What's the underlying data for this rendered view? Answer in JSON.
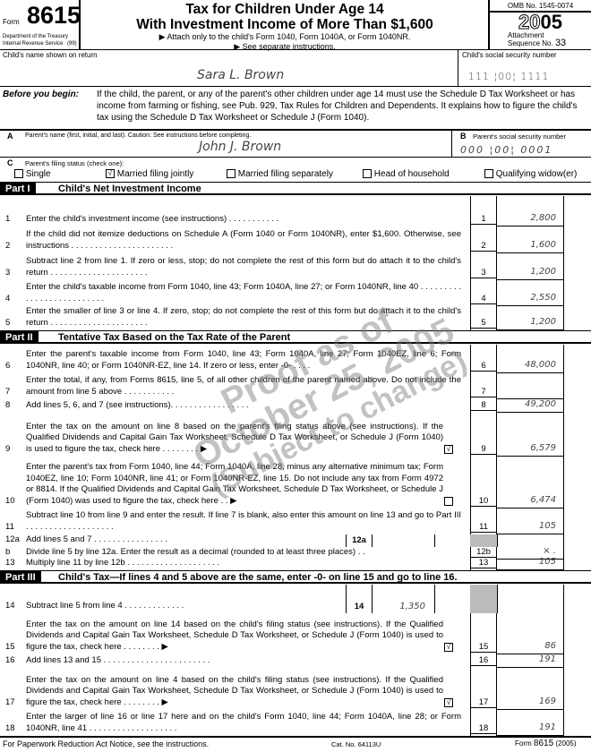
{
  "header": {
    "form_label": "Form",
    "form_number": "8615",
    "dept": "Department of the Treasury",
    "irs": "Internal Revenue Service",
    "irs_code": "(99)",
    "title1": "Tax for Children Under Age 14",
    "title2": "With Investment Income of More Than $1,600",
    "attach": "▶ Attach only to the child's Form 1040, Form 1040A, or Form 1040NR.",
    "see": "▶ See separate instructions.",
    "omb": "OMB No. 1545-0074",
    "year_outline": "20",
    "year_bold": "05",
    "attachment": "Attachment",
    "sequence": "Sequence No.",
    "sequence_no": "33"
  },
  "child": {
    "name_label": "Child's name shown on return",
    "name": "Sara L. Brown",
    "ssn_label": "Child's social security number",
    "ssn": "111 ¦00¦ 1111"
  },
  "before": {
    "label": "Before you begin:",
    "text": "If the child, the parent, or any of the parent's other children under age 14 must use the Schedule D Tax Worksheet or has income from farming or fishing, see Pub. 929, Tax Rules for Children and Dependents. It explains how to figure the child's tax using the Schedule D Tax Worksheet or Schedule J (Form 1040)."
  },
  "parent": {
    "a": "A",
    "name_label": "Parent's name (first, initial, and last). Caution: See instructions before completing.",
    "name": "John J. Brown",
    "b": "B",
    "ssn_label": "Parent's social security number",
    "ssn": "000 ¦00¦ 0001"
  },
  "filing": {
    "c": "C",
    "label": "Parent's filing status (check one):",
    "options": [
      {
        "label": "Single",
        "checked": false
      },
      {
        "label": "Married filing jointly",
        "checked": true
      },
      {
        "label": "Married filing separately",
        "checked": false
      },
      {
        "label": "Head of household",
        "checked": false
      },
      {
        "label": "Qualifying widow(er)",
        "checked": false
      }
    ]
  },
  "parts": [
    {
      "tag": "Part I",
      "title": "Child's Net Investment Income"
    },
    {
      "tag": "Part II",
      "title": "Tentative Tax Based on the Tax Rate of the Parent"
    },
    {
      "tag": "Part III",
      "title": "Child's Tax—If lines 4 and 5 above are the same, enter -0- on line 15 and go to line 16."
    }
  ],
  "lines": [
    {
      "num": "1",
      "box": "1",
      "text": "Enter the child's investment income (see instructions) . . . . . . . . . . .",
      "value": "2,800"
    },
    {
      "num": "2",
      "box": "2",
      "text": "If the child did not itemize deductions on Schedule A (Form 1040 or Form 1040NR), enter $1,600. Otherwise, see instructions . . . . . . . . . . . . . . . . . . . . . .",
      "value": "1,600"
    },
    {
      "num": "3",
      "box": "3",
      "text": "Subtract line 2 from line 1. If zero or less, stop; do not complete the rest of this form but do attach it to the child's return . . . . . . . . . . . . . . . . . . . . .",
      "value": "1,200"
    },
    {
      "num": "4",
      "box": "4",
      "text": "Enter the child's taxable income from Form 1040, line 43; Form 1040A, line 27; or Form 1040NR, line 40 . . . . . . . . . . . . . . . . . . . . . . . . . .",
      "value": "2,550"
    },
    {
      "num": "5",
      "box": "5",
      "text": "Enter the smaller of line 3 or line 4. If zero, stop; do not complete the rest of this form but do attach it to the child's return . . . . . . . . . . . . . . . . . . . . .",
      "value": "1,200"
    },
    {
      "num": "6",
      "box": "6",
      "text": "Enter the parent's taxable income from Form 1040, line 43; Form 1040A, line 27; Form 1040EZ, line 6; Form 1040NR, line 40; or Form 1040NR-EZ, line 14. If zero or less, enter -0- . . . .",
      "value": "48,000"
    },
    {
      "num": "7",
      "box": "7",
      "text": "Enter the total, if any, from Forms 8615, line 5, of all other children of the parent named above. Do not include the amount from line 5 above . . . . . . . . . . .",
      "value": ""
    },
    {
      "num": "8",
      "box": "8",
      "text": "Add lines 5, 6, and 7 (see instructions). . . . . . . . . . . . . . . . .",
      "value": "49,200"
    },
    {
      "num": "9",
      "box": "9",
      "text": "Enter the tax on the amount on line 8 based on the parent's filing status above (see instructions). If the Qualified Dividends and Capital Gain Tax Worksheet, Schedule D Tax Worksheet, or Schedule J (Form 1040) is used to figure the tax, check here . . . . . . . . ▶",
      "value": "6,579",
      "check": true
    },
    {
      "num": "10",
      "box": "10",
      "text": "Enter the parent's tax from Form 1040, line 44; Form 1040A, line 28, minus any alternative minimum tax; Form 1040EZ, line 10; Form 1040NR, line 41; or Form 1040NR-EZ, line 15. Do not include any tax from Form 4972 or 8814. If the Qualified Dividends and Capital Gain Tax Worksheet, Schedule D Tax Worksheet, or Schedule J (Form 1040) was used to figure the tax, check here . . ▶",
      "value": "6,474",
      "check": false
    },
    {
      "num": "11",
      "box": "11",
      "text": "Subtract line 10 from line 9 and enter the result. If line 7 is blank, also enter this amount on line 13 and go to Part III . . . . . . . . . . . . . . . . . . .",
      "value": "105"
    },
    {
      "num": "12a",
      "box": "",
      "text": "Add lines 5 and 7 . . . . . . . . . . . . . . . .",
      "value": "",
      "inner": "12a",
      "innerValue": ""
    },
    {
      "num": "b",
      "box": "12b",
      "text": "Divide line 5 by line 12a. Enter the result as a decimal (rounded to at least three places) . .",
      "value": "×  ."
    },
    {
      "num": "13",
      "box": "13",
      "text": "Multiply line 11 by line 12b . . . . . . . . . . . . . . . . . . . .",
      "value": "105"
    },
    {
      "num": "14",
      "box": "",
      "text": "Subtract line 5 from line 4 . . . . . . . . . . . . .",
      "value": "",
      "inner": "14",
      "innerValue": "1,350"
    },
    {
      "num": "15",
      "box": "15",
      "text": "Enter the tax on the amount on line 14 based on the child's filing status (see instructions). If the Qualified Dividends and Capital Gain Tax Worksheet, Schedule D Tax Worksheet, or Schedule J (Form 1040) is used to figure the tax, check here . . . . . . . . ▶",
      "value": "86",
      "check": true
    },
    {
      "num": "16",
      "box": "16",
      "text": "Add lines 13 and 15 . . . . . . . . . . . . . . . . . . . . . . .",
      "value": "191"
    },
    {
      "num": "17",
      "box": "17",
      "text": "Enter the tax on the amount on line 4 based on the child's filing status (see instructions). If the Qualified Dividends and Capital Gain Tax Worksheet, Schedule D Tax Worksheet, or Schedule J (Form 1040) is used to figure the tax, check here . . . . . . . . ▶",
      "value": "169",
      "check": true
    },
    {
      "num": "18",
      "box": "18",
      "text": "Enter the larger of line 16 or line 17 here and on the child's Form 1040, line 44; Form 1040A, line 28; or Form 1040NR, line 41 . . . . . . . . . . . . . . . . . . .",
      "value": "191"
    }
  ],
  "watermark": {
    "line1": "Proof as of",
    "line2": "October 25, 2005",
    "line3": "(Subject to change)"
  },
  "footer": {
    "notice": "For Paperwork Reduction Act Notice, see the instructions.",
    "cat": "Cat. No. 64113U",
    "form_label": "Form",
    "form_number": "8615",
    "year": "(2005)"
  }
}
